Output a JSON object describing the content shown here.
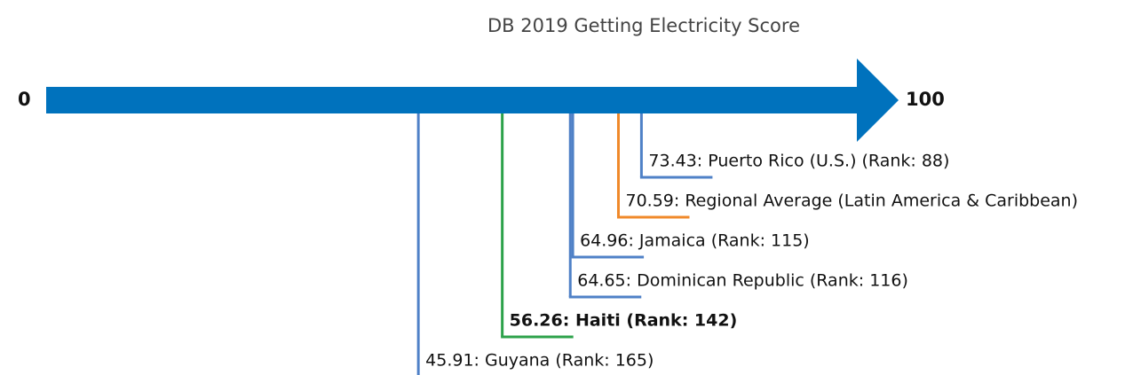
{
  "chart_data": {
    "type": "number_line",
    "title": "DB 2019 Getting Electricity Score",
    "xlim": [
      0,
      100
    ],
    "xticks": [
      0,
      100
    ],
    "axis_color": "#0072bd",
    "values": [
      73.43,
      70.59,
      64.96,
      64.65,
      56.26,
      45.91
    ],
    "value_labels": [
      "73.43: Puerto Rico (U.S.) (Rank: 88)",
      "70.59: Regional Average (Latin America & Caribbean)",
      "64.96: Jamaica (Rank: 115)",
      "64.65: Dominican Republic (Rank: 116)",
      "56.26: Haiti (Rank: 142)",
      "45.91: Guyana (Rank: 165)"
    ],
    "colors": [
      "#4f81c7",
      "#f0892a",
      "#4f81c7",
      "#4f81c7",
      "#2ca24a",
      "#4f81c7"
    ],
    "bold": [
      false,
      false,
      false,
      false,
      true,
      false
    ]
  }
}
